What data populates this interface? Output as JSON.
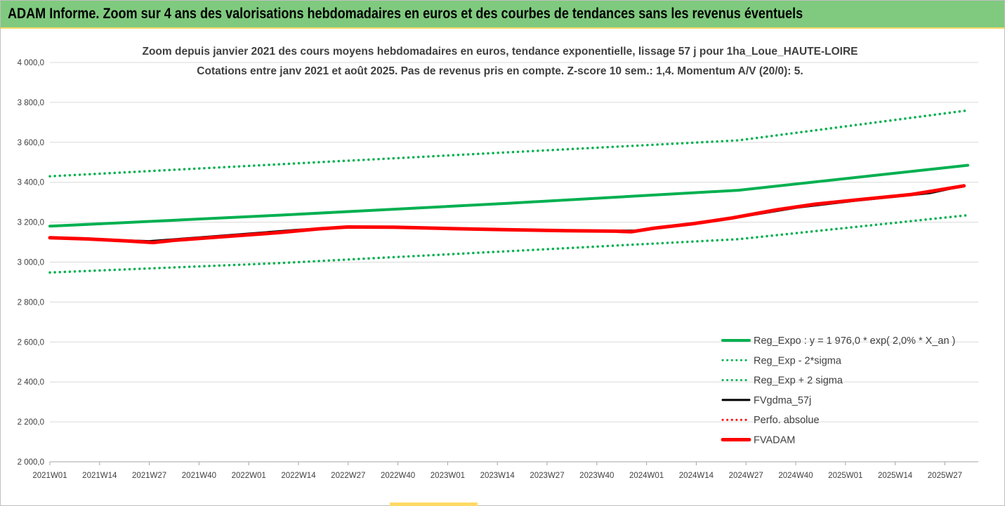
{
  "header": {
    "title": "ADAM Informe. Zoom sur 4 ans des valorisations hebdomadaires en euros et des courbes de tendances sans les revenus éventuels"
  },
  "colors": {
    "header_bg": "#7fca7f",
    "accent_yellow": "#ffd966",
    "trend_green": "#00b050",
    "fvgdma_black": "#000000",
    "fvadam_red": "#ff0000",
    "grid": "#d9d9d9"
  },
  "chart_data": {
    "type": "line",
    "title": [
      "Zoom depuis janvier 2021 des cours moyens hebdomadaires en euros, tendance exponentielle, lissage 57 j pour 1ha_Loue_HAUTE-LOIRE",
      "Cotations entre janv 2021 et août 2025.  Pas de revenus pris en compte. Z-score 10 sem.: 1,4. Momentum A/V (20/0): 5."
    ],
    "x_tick_labels": [
      "2021W01",
      "2021W14",
      "2021W27",
      "2021W40",
      "2022W01",
      "2022W14",
      "2022W27",
      "2022W40",
      "2023W01",
      "2023W14",
      "2023W27",
      "2023W40",
      "2024W01",
      "2024W14",
      "2024W27",
      "2024W40",
      "2025W01",
      "2025W14",
      "2025W27"
    ],
    "y_tick_labels": [
      "2 000,0",
      "2 200,0",
      "2 400,0",
      "2 600,0",
      "2 800,0",
      "3 000,0",
      "3 200,0",
      "3 400,0",
      "3 600,0",
      "3 800,0",
      "4 000,0"
    ],
    "ylim": [
      2000,
      4000
    ],
    "y_ticks": [
      2000,
      2200,
      2400,
      2600,
      2800,
      3000,
      3200,
      3400,
      3600,
      3800,
      4000
    ],
    "x_range_weeks": [
      0,
      239
    ],
    "grid": "horizontal",
    "legend_position": "bottom-right",
    "series": [
      {
        "name": "Reg_Expo : y = 1 976,0 * exp( 2,0% *  X_an )",
        "style": "solid",
        "color": "#00b050",
        "points": [
          [
            0,
            3180
          ],
          [
            60,
            3235
          ],
          [
            120,
            3295
          ],
          [
            180,
            3360
          ],
          [
            240,
            3485
          ]
        ]
      },
      {
        "name": "Reg_Exp - 2*sigma",
        "style": "dotted",
        "color": "#00b050",
        "points": [
          [
            0,
            2948
          ],
          [
            60,
            2995
          ],
          [
            120,
            3055
          ],
          [
            180,
            3115
          ],
          [
            240,
            3235
          ]
        ]
      },
      {
        "name": "Reg_Exp + 2 sigma",
        "style": "dotted",
        "color": "#00b050",
        "points": [
          [
            0,
            3430
          ],
          [
            60,
            3490
          ],
          [
            120,
            3550
          ],
          [
            180,
            3610
          ],
          [
            240,
            3760
          ]
        ]
      },
      {
        "name": "FVgdma_57j",
        "style": "solid",
        "color": "#000000",
        "points": [
          [
            0,
            3123
          ],
          [
            15,
            3112
          ],
          [
            26,
            3105
          ],
          [
            38,
            3122
          ],
          [
            65,
            3162
          ],
          [
            78,
            3176
          ],
          [
            100,
            3170
          ],
          [
            125,
            3160
          ],
          [
            140,
            3156
          ],
          [
            153,
            3158
          ],
          [
            160,
            3172
          ],
          [
            175,
            3210
          ],
          [
            185,
            3240
          ],
          [
            195,
            3272
          ],
          [
            210,
            3306
          ],
          [
            230,
            3345
          ],
          [
            239,
            3382
          ]
        ]
      },
      {
        "name": "Perfo. absolue",
        "style": "dotted",
        "color": "#ff0000",
        "points": []
      },
      {
        "name": "FVADAM",
        "style": "solid",
        "color": "#ff0000",
        "points": [
          [
            0,
            3122
          ],
          [
            10,
            3116
          ],
          [
            20,
            3106
          ],
          [
            27,
            3098
          ],
          [
            33,
            3110
          ],
          [
            45,
            3127
          ],
          [
            60,
            3148
          ],
          [
            70,
            3166
          ],
          [
            78,
            3176
          ],
          [
            90,
            3175
          ],
          [
            105,
            3168
          ],
          [
            120,
            3162
          ],
          [
            135,
            3157
          ],
          [
            148,
            3155
          ],
          [
            152,
            3152
          ],
          [
            158,
            3170
          ],
          [
            168,
            3192
          ],
          [
            178,
            3220
          ],
          [
            190,
            3262
          ],
          [
            200,
            3290
          ],
          [
            210,
            3310
          ],
          [
            225,
            3338
          ],
          [
            239,
            3382
          ]
        ]
      }
    ]
  }
}
